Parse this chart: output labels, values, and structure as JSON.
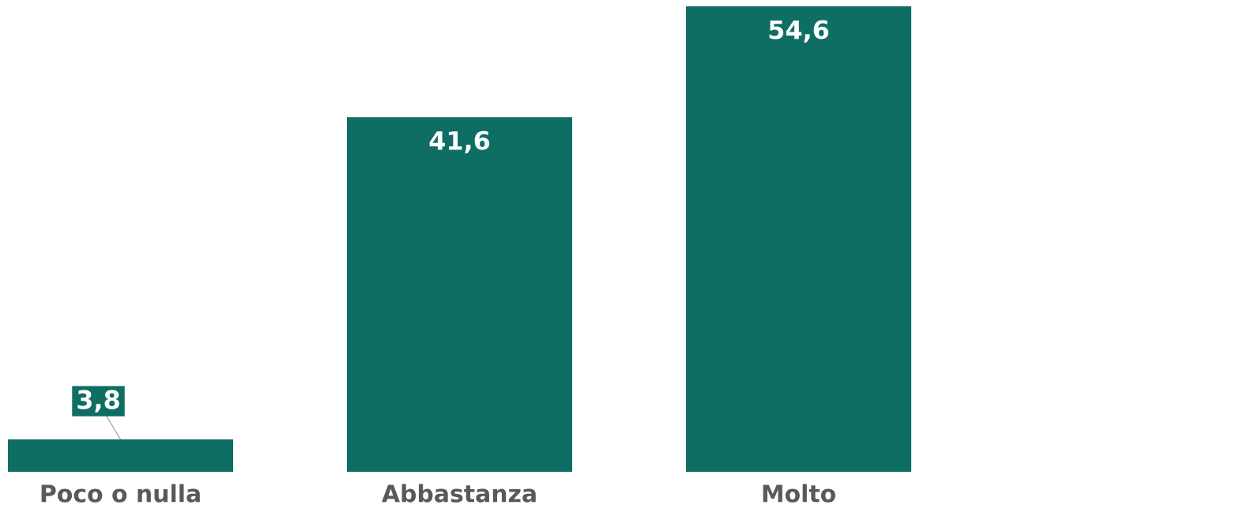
{
  "chart_data": {
    "type": "bar",
    "categories": [
      "Poco o nulla",
      "Abbastanza",
      "Molto"
    ],
    "values": [
      3.8,
      41.6,
      54.6
    ],
    "color": "#0f6e64",
    "data_labels": true,
    "value_labels": [
      "3,8",
      "41,6",
      "54,6"
    ]
  }
}
